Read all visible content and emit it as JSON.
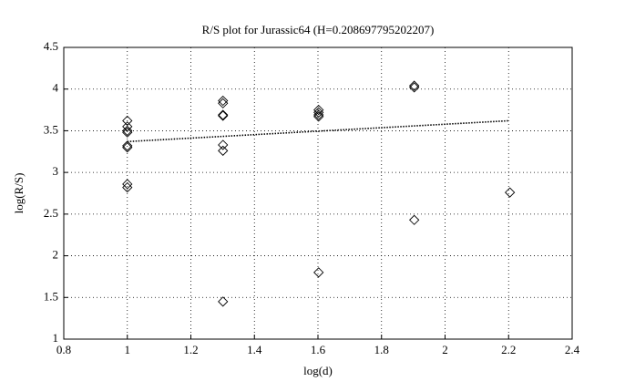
{
  "chart_data": {
    "type": "scatter",
    "title": "R/S plot for Jurassic64 (H=0.208697795202207)",
    "x_label": "log(d)",
    "y_label": "log(R/S)",
    "series": [
      {
        "mode": "markers",
        "marker": "diamond",
        "color": "#000000",
        "x": [
          1,
          1,
          1,
          1,
          1,
          1,
          1,
          1,
          1.301,
          1.301,
          1.301,
          1.301,
          1.301,
          1.301,
          1.301,
          1.602,
          1.602,
          1.602,
          1.602,
          1.602,
          1.903,
          1.903,
          1.903,
          2.204
        ],
        "values": [
          3.62,
          3.55,
          3.5,
          3.48,
          3.32,
          3.3,
          2.86,
          2.82,
          3.86,
          3.83,
          3.69,
          3.68,
          3.33,
          3.26,
          1.45,
          3.75,
          3.72,
          3.69,
          3.67,
          1.8,
          4.04,
          4.02,
          2.43,
          2.76
        ]
      },
      {
        "mode": "line",
        "dash": "dotted",
        "color": "#000000",
        "x": [
          1,
          2.2
        ],
        "values": [
          3.37,
          3.62
        ]
      }
    ],
    "xlim": [
      0.8,
      2.4
    ],
    "xticks": [
      0.8,
      1,
      1.2,
      1.4,
      1.6,
      1.8,
      2,
      2.2,
      2.4
    ],
    "ylim": [
      1,
      4.5
    ],
    "yticks": [
      1,
      1.5,
      2,
      2.5,
      3,
      3.5,
      4,
      4.5
    ],
    "grid": true
  }
}
